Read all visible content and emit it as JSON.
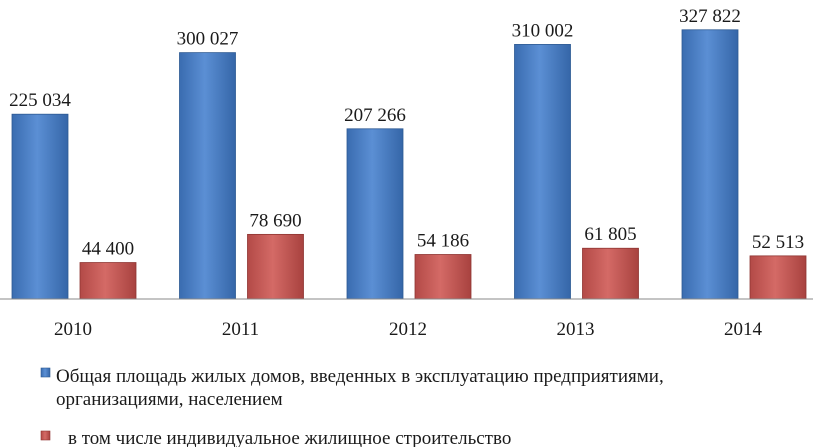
{
  "chart_data": {
    "type": "bar",
    "categories": [
      "2010",
      "2011",
      "2012",
      "2013",
      "2014"
    ],
    "series": [
      {
        "name": "Общая площадь жилых домов, введенных в эксплуатацию предприятиями, организациями, населением",
        "name_lines": [
          "Общая площадь жилых домов, введенных в эксплуатацию предприятиями,",
          "организациями, населением"
        ],
        "values": [
          225034,
          300027,
          207266,
          310002,
          327822
        ],
        "labels": [
          "225 034",
          "300 027",
          "207 266",
          "310 002",
          "327 822"
        ],
        "color": "#4f81bd"
      },
      {
        "name": "в том числе индивидуальное жилищное строительство",
        "name_lines": [
          "в том числе индивидуальное жилищное строительство"
        ],
        "values": [
          44400,
          78690,
          54186,
          61805,
          52513
        ],
        "labels": [
          "44 400",
          "78 690",
          "54 186",
          "61 805",
          "52 513"
        ],
        "color": "#c0504d"
      }
    ],
    "ylim": [
      0,
      330000
    ],
    "grid": false,
    "legend_position": "bottom"
  }
}
